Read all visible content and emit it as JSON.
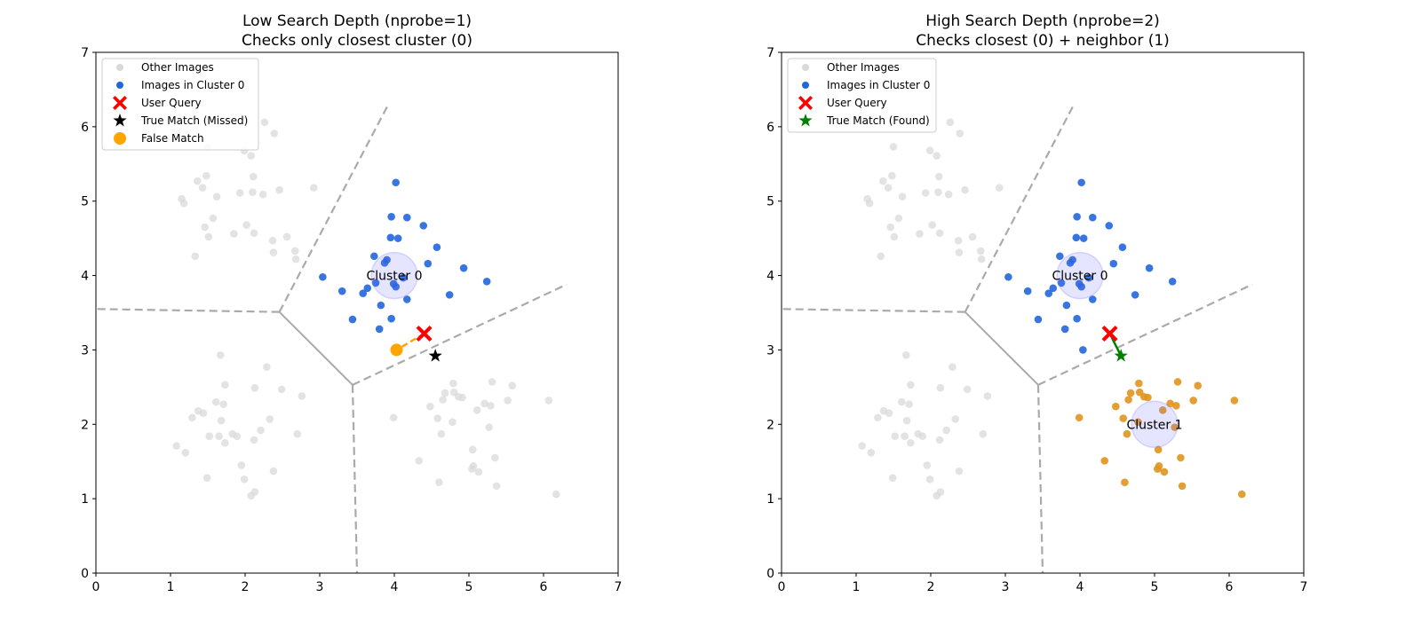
{
  "chart_data": [
    {
      "type": "scatter",
      "title": [
        "Low Search Depth (nprobe=1)",
        "Checks only closest cluster (0)"
      ],
      "xlim": [
        0,
        7
      ],
      "ylim": [
        0,
        7
      ],
      "xticks": [
        "0",
        "1",
        "2",
        "3",
        "4",
        "5",
        "6",
        "7"
      ],
      "yticks": [
        "0",
        "1",
        "2",
        "3",
        "4",
        "5",
        "6",
        "7"
      ],
      "grid": false,
      "legend_position": "top-left",
      "legend": [
        "Other Images",
        "Images in Cluster 0",
        "User Query",
        "True Match (Missed)",
        "False Match"
      ],
      "colors": {
        "other": "#d9d9d9",
        "cluster0": "#2266dd",
        "query": "#ff0000",
        "true_match": "#000000",
        "false_match": "#ffa500",
        "voronoi": "#aaaaaa",
        "centroid": "#c8c8f8"
      },
      "cluster_labels": [
        {
          "text": "Cluster 0",
          "x": 4,
          "y": 4
        }
      ],
      "other_points": [
        [
          2.26,
          6.06
        ],
        [
          2.39,
          5.91
        ],
        [
          1.5,
          5.73
        ],
        [
          1.99,
          5.68
        ],
        [
          2.08,
          5.61
        ],
        [
          1.48,
          5.34
        ],
        [
          1.36,
          5.27
        ],
        [
          2.11,
          5.33
        ],
        [
          1.43,
          5.18
        ],
        [
          1.15,
          5.03
        ],
        [
          1.18,
          4.97
        ],
        [
          1.62,
          5.06
        ],
        [
          1.93,
          5.11
        ],
        [
          2.1,
          5.12
        ],
        [
          2.24,
          5.09
        ],
        [
          2.46,
          5.15
        ],
        [
          2.92,
          5.18
        ],
        [
          1.57,
          4.77
        ],
        [
          1.46,
          4.65
        ],
        [
          1.51,
          4.52
        ],
        [
          1.85,
          4.56
        ],
        [
          2.02,
          4.68
        ],
        [
          2.12,
          4.57
        ],
        [
          2.37,
          4.47
        ],
        [
          2.56,
          4.52
        ],
        [
          2.38,
          4.31
        ],
        [
          2.67,
          4.33
        ],
        [
          2.68,
          4.22
        ],
        [
          1.33,
          4.26
        ],
        [
          1.67,
          2.93
        ],
        [
          2.29,
          2.77
        ],
        [
          1.73,
          2.53
        ],
        [
          2.13,
          2.49
        ],
        [
          2.49,
          2.47
        ],
        [
          2.76,
          2.38
        ],
        [
          1.61,
          2.3
        ],
        [
          1.71,
          2.27
        ],
        [
          1.37,
          2.18
        ],
        [
          1.44,
          2.15
        ],
        [
          1.29,
          2.09
        ],
        [
          1.68,
          2.05
        ],
        [
          2.33,
          2.07
        ],
        [
          2.21,
          1.92
        ],
        [
          2.7,
          1.87
        ],
        [
          1.52,
          1.84
        ],
        [
          1.65,
          1.84
        ],
        [
          1.83,
          1.87
        ],
        [
          1.89,
          1.84
        ],
        [
          1.73,
          1.75
        ],
        [
          2.12,
          1.79
        ],
        [
          1.08,
          1.71
        ],
        [
          1.2,
          1.62
        ],
        [
          1.95,
          1.45
        ],
        [
          2.38,
          1.37
        ],
        [
          1.49,
          1.28
        ],
        [
          1.99,
          1.26
        ],
        [
          2.13,
          1.09
        ],
        [
          2.08,
          1.04
        ],
        [
          4.79,
          2.55
        ],
        [
          5.31,
          2.57
        ],
        [
          5.58,
          2.52
        ],
        [
          4.68,
          2.42
        ],
        [
          4.8,
          2.43
        ],
        [
          4.65,
          2.33
        ],
        [
          4.86,
          2.37
        ],
        [
          4.91,
          2.36
        ],
        [
          5.52,
          2.32
        ],
        [
          5.21,
          2.28
        ],
        [
          5.29,
          2.25
        ],
        [
          4.48,
          2.24
        ],
        [
          5.11,
          2.19
        ],
        [
          3.99,
          2.09
        ],
        [
          4.58,
          2.08
        ],
        [
          4.78,
          2.03
        ],
        [
          5.27,
          1.96
        ],
        [
          4.63,
          1.87
        ],
        [
          5.05,
          1.66
        ],
        [
          5.35,
          1.55
        ],
        [
          4.33,
          1.51
        ],
        [
          5.06,
          1.44
        ],
        [
          5.04,
          1.4
        ],
        [
          5.13,
          1.36
        ],
        [
          4.6,
          1.22
        ],
        [
          5.37,
          1.17
        ],
        [
          6.07,
          2.32
        ],
        [
          6.17,
          1.06
        ]
      ],
      "cluster0_points": [
        [
          4.02,
          5.25
        ],
        [
          3.96,
          4.79
        ],
        [
          4.17,
          4.78
        ],
        [
          4.39,
          4.67
        ],
        [
          3.95,
          4.51
        ],
        [
          4.05,
          4.5
        ],
        [
          4.57,
          4.38
        ],
        [
          3.73,
          4.26
        ],
        [
          3.9,
          4.21
        ],
        [
          3.87,
          4.17
        ],
        [
          4.45,
          4.16
        ],
        [
          4.93,
          4.1
        ],
        [
          3.04,
          3.98
        ],
        [
          4.12,
          3.97
        ],
        [
          5.24,
          3.92
        ],
        [
          3.75,
          3.9
        ],
        [
          3.64,
          3.83
        ],
        [
          3.99,
          3.89
        ],
        [
          4.02,
          3.85
        ],
        [
          3.3,
          3.79
        ],
        [
          3.58,
          3.76
        ],
        [
          4.74,
          3.74
        ],
        [
          4.17,
          3.68
        ],
        [
          3.82,
          3.6
        ],
        [
          3.44,
          3.41
        ],
        [
          3.96,
          3.42
        ],
        [
          3.8,
          3.28
        ],
        [
          4.04,
          3.0
        ]
      ],
      "query": [
        4.4,
        3.22
      ],
      "true_match": [
        4.55,
        2.92
      ],
      "false_match": [
        4.03,
        3.0
      ],
      "voronoi_solid": [
        [
          [
            2.46,
            3.51
          ],
          [
            3.44,
            2.53
          ]
        ]
      ],
      "voronoi_dashed": [
        [
          [
            2.46,
            3.51
          ],
          [
            3.93,
            6.32
          ]
        ],
        [
          [
            2.46,
            3.51
          ],
          [
            0,
            3.55
          ]
        ],
        [
          [
            3.44,
            2.53
          ],
          [
            3.5,
            0
          ]
        ],
        [
          [
            3.44,
            2.53
          ],
          [
            6.31,
            3.88
          ]
        ]
      ]
    },
    {
      "type": "scatter",
      "title": [
        "High Search Depth (nprobe=2)",
        "Checks closest (0) + neighbor (1)"
      ],
      "xlim": [
        0,
        7
      ],
      "ylim": [
        0,
        7
      ],
      "xticks": [
        "0",
        "1",
        "2",
        "3",
        "4",
        "5",
        "6",
        "7"
      ],
      "yticks": [
        "0",
        "1",
        "2",
        "3",
        "4",
        "5",
        "6",
        "7"
      ],
      "grid": false,
      "legend_position": "top-left",
      "legend": [
        "Other Images",
        "Images in Cluster 0",
        "User Query",
        "True Match (Found)"
      ],
      "colors": {
        "other": "#d9d9d9",
        "cluster0": "#2266dd",
        "cluster1": "#e0951e",
        "query": "#ff0000",
        "true_match": "#008000",
        "voronoi": "#aaaaaa",
        "centroid": "#c8c8f8"
      },
      "cluster_labels": [
        {
          "text": "Cluster 0",
          "x": 4,
          "y": 4
        },
        {
          "text": "Cluster 1",
          "x": 5,
          "y": 2
        }
      ],
      "other_points": [
        [
          2.26,
          6.06
        ],
        [
          2.39,
          5.91
        ],
        [
          1.5,
          5.73
        ],
        [
          1.99,
          5.68
        ],
        [
          2.08,
          5.61
        ],
        [
          1.48,
          5.34
        ],
        [
          1.36,
          5.27
        ],
        [
          2.11,
          5.33
        ],
        [
          1.43,
          5.18
        ],
        [
          1.15,
          5.03
        ],
        [
          1.18,
          4.97
        ],
        [
          1.62,
          5.06
        ],
        [
          1.93,
          5.11
        ],
        [
          2.1,
          5.12
        ],
        [
          2.24,
          5.09
        ],
        [
          2.46,
          5.15
        ],
        [
          2.92,
          5.18
        ],
        [
          1.57,
          4.77
        ],
        [
          1.46,
          4.65
        ],
        [
          1.51,
          4.52
        ],
        [
          1.85,
          4.56
        ],
        [
          2.02,
          4.68
        ],
        [
          2.12,
          4.57
        ],
        [
          2.37,
          4.47
        ],
        [
          2.56,
          4.52
        ],
        [
          2.38,
          4.31
        ],
        [
          2.67,
          4.33
        ],
        [
          2.68,
          4.22
        ],
        [
          1.33,
          4.26
        ],
        [
          1.67,
          2.93
        ],
        [
          2.29,
          2.77
        ],
        [
          1.73,
          2.53
        ],
        [
          2.13,
          2.49
        ],
        [
          2.49,
          2.47
        ],
        [
          2.76,
          2.38
        ],
        [
          1.61,
          2.3
        ],
        [
          1.71,
          2.27
        ],
        [
          1.37,
          2.18
        ],
        [
          1.44,
          2.15
        ],
        [
          1.29,
          2.09
        ],
        [
          1.68,
          2.05
        ],
        [
          2.33,
          2.07
        ],
        [
          2.21,
          1.92
        ],
        [
          2.7,
          1.87
        ],
        [
          1.52,
          1.84
        ],
        [
          1.65,
          1.84
        ],
        [
          1.83,
          1.87
        ],
        [
          1.89,
          1.84
        ],
        [
          1.73,
          1.75
        ],
        [
          2.12,
          1.79
        ],
        [
          1.08,
          1.71
        ],
        [
          1.2,
          1.62
        ],
        [
          1.95,
          1.45
        ],
        [
          2.38,
          1.37
        ],
        [
          1.49,
          1.28
        ],
        [
          1.99,
          1.26
        ],
        [
          2.13,
          1.09
        ],
        [
          2.08,
          1.04
        ]
      ],
      "cluster0_points": [
        [
          4.02,
          5.25
        ],
        [
          3.96,
          4.79
        ],
        [
          4.17,
          4.78
        ],
        [
          4.39,
          4.67
        ],
        [
          3.95,
          4.51
        ],
        [
          4.05,
          4.5
        ],
        [
          4.57,
          4.38
        ],
        [
          3.73,
          4.26
        ],
        [
          3.9,
          4.21
        ],
        [
          3.87,
          4.17
        ],
        [
          4.45,
          4.16
        ],
        [
          4.93,
          4.1
        ],
        [
          3.04,
          3.98
        ],
        [
          4.12,
          3.97
        ],
        [
          5.24,
          3.92
        ],
        [
          3.75,
          3.9
        ],
        [
          3.64,
          3.83
        ],
        [
          3.99,
          3.89
        ],
        [
          4.02,
          3.85
        ],
        [
          3.3,
          3.79
        ],
        [
          3.58,
          3.76
        ],
        [
          4.74,
          3.74
        ],
        [
          4.17,
          3.68
        ],
        [
          3.82,
          3.6
        ],
        [
          3.44,
          3.41
        ],
        [
          3.96,
          3.42
        ],
        [
          3.8,
          3.28
        ],
        [
          4.04,
          3.0
        ]
      ],
      "cluster1_points": [
        [
          4.79,
          2.55
        ],
        [
          5.31,
          2.57
        ],
        [
          5.58,
          2.52
        ],
        [
          4.68,
          2.42
        ],
        [
          4.8,
          2.43
        ],
        [
          4.65,
          2.33
        ],
        [
          4.86,
          2.37
        ],
        [
          4.91,
          2.36
        ],
        [
          5.52,
          2.32
        ],
        [
          5.21,
          2.28
        ],
        [
          5.29,
          2.25
        ],
        [
          4.48,
          2.24
        ],
        [
          5.11,
          2.19
        ],
        [
          3.99,
          2.09
        ],
        [
          4.58,
          2.08
        ],
        [
          4.78,
          2.03
        ],
        [
          5.27,
          1.96
        ],
        [
          4.63,
          1.87
        ],
        [
          5.05,
          1.66
        ],
        [
          5.35,
          1.55
        ],
        [
          4.33,
          1.51
        ],
        [
          5.06,
          1.44
        ],
        [
          5.04,
          1.4
        ],
        [
          5.13,
          1.36
        ],
        [
          4.6,
          1.22
        ],
        [
          5.37,
          1.17
        ],
        [
          6.07,
          2.32
        ],
        [
          6.17,
          1.06
        ]
      ],
      "query": [
        4.4,
        3.22
      ],
      "true_match": [
        4.55,
        2.92
      ],
      "voronoi_solid": [
        [
          [
            2.46,
            3.51
          ],
          [
            3.44,
            2.53
          ]
        ]
      ],
      "voronoi_dashed": [
        [
          [
            2.46,
            3.51
          ],
          [
            3.93,
            6.32
          ]
        ],
        [
          [
            2.46,
            3.51
          ],
          [
            0,
            3.55
          ]
        ],
        [
          [
            3.44,
            2.53
          ],
          [
            3.5,
            0
          ]
        ],
        [
          [
            3.44,
            2.53
          ],
          [
            6.31,
            3.88
          ]
        ]
      ]
    }
  ]
}
